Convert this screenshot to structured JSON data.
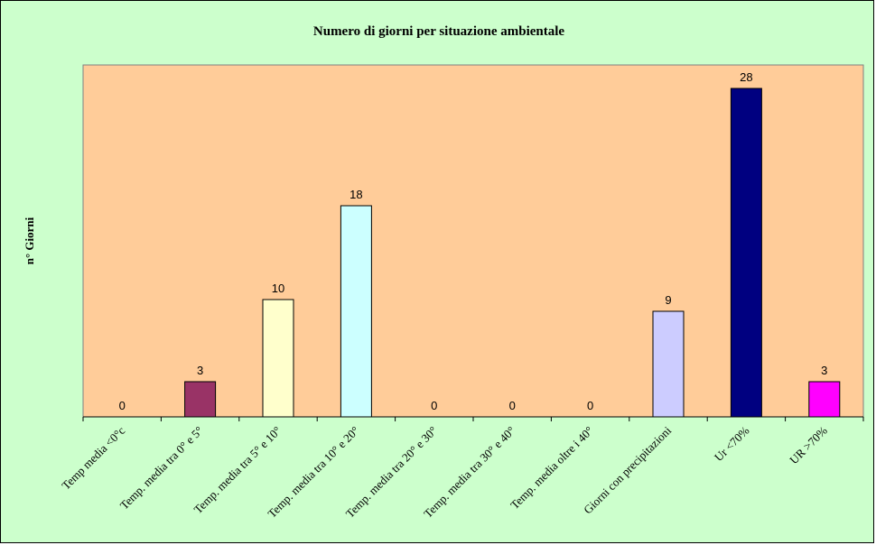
{
  "chart_data": {
    "type": "bar",
    "title": "Numero di giorni per situazione ambientale",
    "xlabel": "",
    "ylabel": "n° Giorni",
    "ylim": [
      0,
      30
    ],
    "grid": false,
    "legend": "none",
    "categories": [
      "Temp media <0°c",
      "Temp. media tra 0° e 5°",
      "Temp. media tra 5° e 10°",
      "Temp. media tra 10° e 20°",
      "Temp. media tra 20° e 30°",
      "Temp. media tra 30° e 40°",
      "Temp. media oltre i 40°",
      "Giorni con precipitazioni",
      "Ur <70%",
      "UR >70%"
    ],
    "values": [
      0,
      3,
      10,
      18,
      0,
      0,
      0,
      9,
      28,
      3
    ],
    "data_labels": [
      "0",
      "3",
      "10",
      "18",
      "0",
      "0",
      "0",
      "9",
      "28",
      "3"
    ],
    "bar_colors": [
      "#993366",
      "#993366",
      "#ffffcc",
      "#ccffff",
      "#660066",
      "#ff8080",
      "#0066cc",
      "#ccccff",
      "#000080",
      "#ff00ff"
    ],
    "colors": {
      "chart_background": "#ccffcc",
      "plot_background": "#ffcc99",
      "axis": "#000000",
      "bar_border": "#000000"
    }
  }
}
